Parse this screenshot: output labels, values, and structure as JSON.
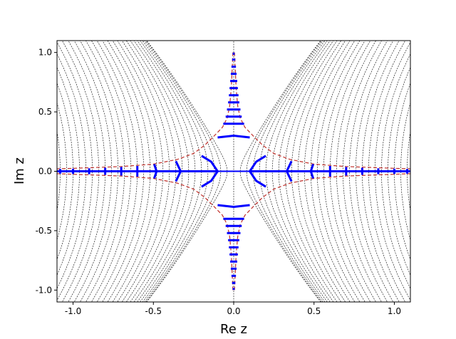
{
  "chart_data": {
    "type": "line",
    "title": "",
    "xlabel": "Re z",
    "ylabel": "Im z",
    "xlim": [
      -1.1,
      1.1
    ],
    "ylim": [
      -1.1,
      1.1
    ],
    "xticks": [
      -1.0,
      -0.5,
      0.0,
      0.5,
      1.0
    ],
    "yticks": [
      -1.0,
      -0.5,
      0.0,
      0.5,
      1.0
    ],
    "xtick_labels": [
      "-1.0",
      "-0.5",
      "0.0",
      "0.5",
      "1.0"
    ],
    "ytick_labels": [
      "-1.0",
      "-0.5",
      "0.0",
      "0.5",
      "1.0"
    ],
    "grid": false,
    "legend": "none",
    "series": [
      {
        "style": "black dotted contour lines",
        "color": "#000000",
        "x_intercepts": [
          -1.08,
          -1.04,
          -1.0,
          -0.96,
          -0.92,
          -0.88,
          -0.84,
          -0.8,
          -0.76,
          -0.72,
          -0.68,
          -0.64,
          -0.6,
          -0.56,
          -0.52,
          -0.48,
          -0.44,
          -0.4,
          -0.36,
          -0.32,
          -0.28,
          -0.24,
          -0.2,
          -0.16,
          -0.12,
          -0.08,
          -0.04,
          0.04,
          0.08,
          0.12,
          0.16,
          0.2,
          0.24,
          0.28,
          0.32,
          0.36,
          0.4,
          0.44,
          0.48,
          0.52,
          0.56,
          0.6,
          0.64,
          0.68,
          0.72,
          0.76,
          0.8,
          0.84,
          0.88,
          0.92,
          0.96,
          1.0,
          1.04,
          1.08
        ]
      },
      {
        "style": "red dashed boundary curves",
        "color": "#c0302a",
        "curves": [
          {
            "quadrant": "top-right",
            "points": [
              [
                0.005,
                1.0
              ],
              [
                0.01,
                0.85
              ],
              [
                0.015,
                0.7
              ],
              [
                0.025,
                0.55
              ],
              [
                0.04,
                0.45
              ],
              [
                0.07,
                0.37
              ],
              [
                0.12,
                0.3
              ],
              [
                0.18,
                0.22
              ],
              [
                0.25,
                0.15
              ],
              [
                0.35,
                0.1
              ],
              [
                0.5,
                0.06
              ],
              [
                0.7,
                0.04
              ],
              [
                0.9,
                0.03
              ],
              [
                1.1,
                0.02
              ]
            ]
          },
          {
            "quadrant": "top-left",
            "points": [
              [
                -0.005,
                1.0
              ],
              [
                -0.01,
                0.85
              ],
              [
                -0.015,
                0.7
              ],
              [
                -0.025,
                0.55
              ],
              [
                -0.04,
                0.45
              ],
              [
                -0.07,
                0.37
              ],
              [
                -0.12,
                0.3
              ],
              [
                -0.18,
                0.22
              ],
              [
                -0.25,
                0.15
              ],
              [
                -0.35,
                0.1
              ],
              [
                -0.5,
                0.06
              ],
              [
                -0.7,
                0.04
              ],
              [
                -0.9,
                0.03
              ],
              [
                -1.1,
                0.02
              ]
            ]
          },
          {
            "quadrant": "bottom-right",
            "points": [
              [
                0.005,
                -1.0
              ],
              [
                0.01,
                -0.85
              ],
              [
                0.015,
                -0.7
              ],
              [
                0.025,
                -0.55
              ],
              [
                0.04,
                -0.45
              ],
              [
                0.07,
                -0.37
              ],
              [
                0.12,
                -0.3
              ],
              [
                0.18,
                -0.22
              ],
              [
                0.25,
                -0.15
              ],
              [
                0.35,
                -0.1
              ],
              [
                0.5,
                -0.06
              ],
              [
                0.7,
                -0.04
              ],
              [
                0.9,
                -0.03
              ],
              [
                1.1,
                -0.02
              ]
            ]
          },
          {
            "quadrant": "bottom-left",
            "points": [
              [
                -0.005,
                -1.0
              ],
              [
                -0.01,
                -0.85
              ],
              [
                -0.015,
                -0.7
              ],
              [
                -0.025,
                -0.55
              ],
              [
                -0.04,
                -0.45
              ],
              [
                -0.07,
                -0.37
              ],
              [
                -0.12,
                -0.3
              ],
              [
                -0.18,
                -0.22
              ],
              [
                -0.25,
                -0.15
              ],
              [
                -0.35,
                -0.1
              ],
              [
                -0.5,
                -0.06
              ],
              [
                -0.7,
                -0.04
              ],
              [
                -0.9,
                -0.03
              ],
              [
                -1.1,
                -0.02
              ]
            ]
          }
        ]
      },
      {
        "style": "blue solid segments",
        "color": "#0000ff",
        "real_axis_segments": [
          [
            -1.1,
            -0.1
          ],
          [
            0.1,
            1.1
          ]
        ],
        "imag_axis_segment": [
          -0.1,
          0.1
        ],
        "horizontal_arcs": [
          {
            "y": 0.3,
            "half_width": 0.1,
            "sag": 0.015
          },
          {
            "y": 0.4,
            "half_width": 0.065,
            "sag": 0.0
          },
          {
            "y": 0.46,
            "half_width": 0.05,
            "sag": 0.0
          },
          {
            "y": 0.52,
            "half_width": 0.042,
            "sag": 0.0
          },
          {
            "y": 0.58,
            "half_width": 0.035,
            "sag": 0.0
          },
          {
            "y": 0.64,
            "half_width": 0.03,
            "sag": 0.0
          },
          {
            "y": 0.7,
            "half_width": 0.026,
            "sag": 0.0
          },
          {
            "y": 0.76,
            "half_width": 0.022,
            "sag": 0.0
          },
          {
            "y": 0.82,
            "half_width": 0.018,
            "sag": 0.0
          },
          {
            "y": 0.88,
            "half_width": 0.014,
            "sag": 0.0
          },
          {
            "y": 0.94,
            "half_width": 0.01,
            "sag": 0.0
          },
          {
            "y": 0.99,
            "half_width": 0.006,
            "sag": 0.0
          }
        ],
        "vertical_arcs": [
          {
            "x": 0.33,
            "half_height": 0.085,
            "bow": 0.03
          },
          {
            "x": 0.48,
            "half_height": 0.06,
            "bow": 0.015
          },
          {
            "x": 0.6,
            "half_height": 0.045,
            "bow": 0.0
          },
          {
            "x": 0.7,
            "half_height": 0.036,
            "bow": 0.0
          },
          {
            "x": 0.8,
            "half_height": 0.03,
            "bow": 0.0
          },
          {
            "x": 0.9,
            "half_height": 0.025,
            "bow": 0.0
          },
          {
            "x": 1.0,
            "half_height": 0.022,
            "bow": 0.0
          },
          {
            "x": 1.08,
            "half_height": 0.02,
            "bow": 0.0
          }
        ],
        "inner_arcs": [
          {
            "side": "right",
            "points": [
              [
                0.2,
                0.13
              ],
              [
                0.14,
                0.08
              ],
              [
                0.1,
                0.0
              ],
              [
                0.14,
                -0.08
              ],
              [
                0.2,
                -0.13
              ]
            ]
          },
          {
            "side": "left",
            "points": [
              [
                -0.2,
                0.13
              ],
              [
                -0.14,
                0.08
              ],
              [
                -0.1,
                0.0
              ],
              [
                -0.14,
                -0.08
              ],
              [
                -0.2,
                -0.13
              ]
            ]
          }
        ]
      }
    ]
  }
}
